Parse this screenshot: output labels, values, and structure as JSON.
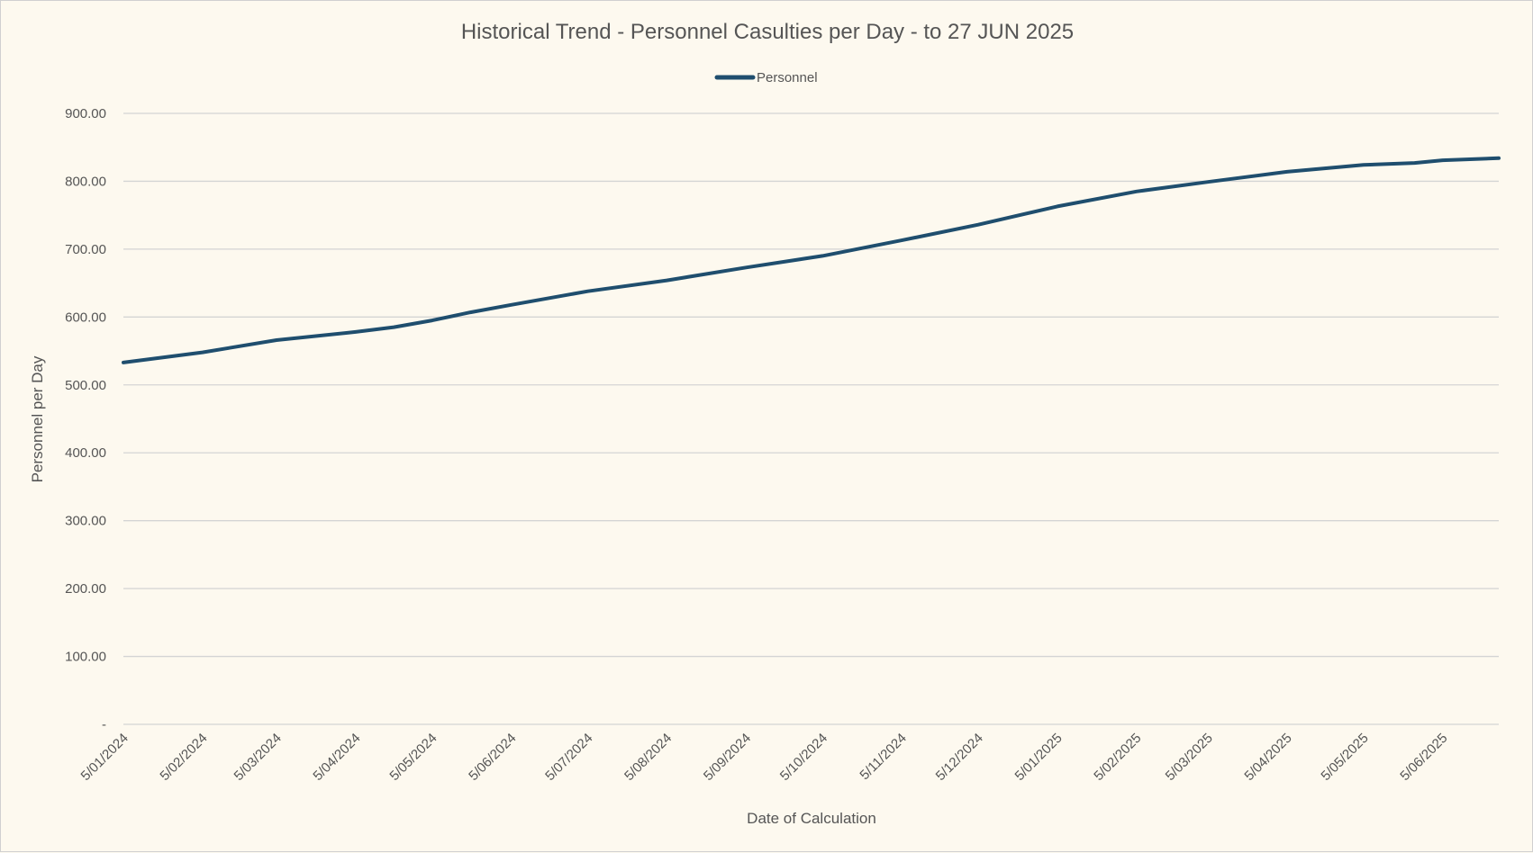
{
  "chart_data": {
    "type": "line",
    "title": "Historical Trend - Personnel Casulties per Day - to 27 JUN 2025",
    "xlabel": "Date of Calculation",
    "ylabel": "Personnel per Day",
    "ylim": [
      0,
      900
    ],
    "xlim": [
      "2024-01-05",
      "2025-06-27"
    ],
    "yticks": [
      0,
      100,
      200,
      300,
      400,
      500,
      600,
      700,
      800,
      900
    ],
    "ytick_labels": [
      "-",
      "100.00",
      "200.00",
      "300.00",
      "400.00",
      "500.00",
      "600.00",
      "700.00",
      "800.00",
      "900.00"
    ],
    "xticks": [
      "2024-01-05",
      "2024-02-05",
      "2024-03-05",
      "2024-04-05",
      "2024-05-05",
      "2024-06-05",
      "2024-07-05",
      "2024-08-05",
      "2024-09-05",
      "2024-10-05",
      "2024-11-05",
      "2024-12-05",
      "2025-01-05",
      "2025-02-05",
      "2025-03-05",
      "2025-04-05",
      "2025-05-05",
      "2025-06-05"
    ],
    "xtick_labels": [
      "5/01/2024",
      "5/02/2024",
      "5/03/2024",
      "5/04/2024",
      "5/05/2024",
      "5/06/2024",
      "5/07/2024",
      "5/08/2024",
      "5/09/2024",
      "5/10/2024",
      "5/11/2024",
      "5/12/2024",
      "5/01/2025",
      "5/02/2025",
      "5/03/2025",
      "5/04/2025",
      "5/05/2025",
      "5/06/2025"
    ],
    "grid": true,
    "legend_position": "top",
    "series": [
      {
        "name": "Personnel",
        "color": "#1f4e6e",
        "x": [
          "2024-01-05",
          "2024-02-05",
          "2024-03-05",
          "2024-04-05",
          "2024-04-20",
          "2024-05-05",
          "2024-05-20",
          "2024-06-05",
          "2024-07-05",
          "2024-08-05",
          "2024-09-05",
          "2024-10-05",
          "2024-11-05",
          "2024-12-05",
          "2025-01-05",
          "2025-02-05",
          "2025-03-05",
          "2025-04-05",
          "2025-05-05",
          "2025-05-25",
          "2025-06-05",
          "2025-06-27"
        ],
        "y": [
          533,
          548,
          566,
          578,
          585,
          595,
          607,
          618,
          638,
          654,
          673,
          690,
          713,
          736,
          763,
          785,
          799,
          814,
          824,
          827,
          831,
          834
        ]
      }
    ]
  }
}
